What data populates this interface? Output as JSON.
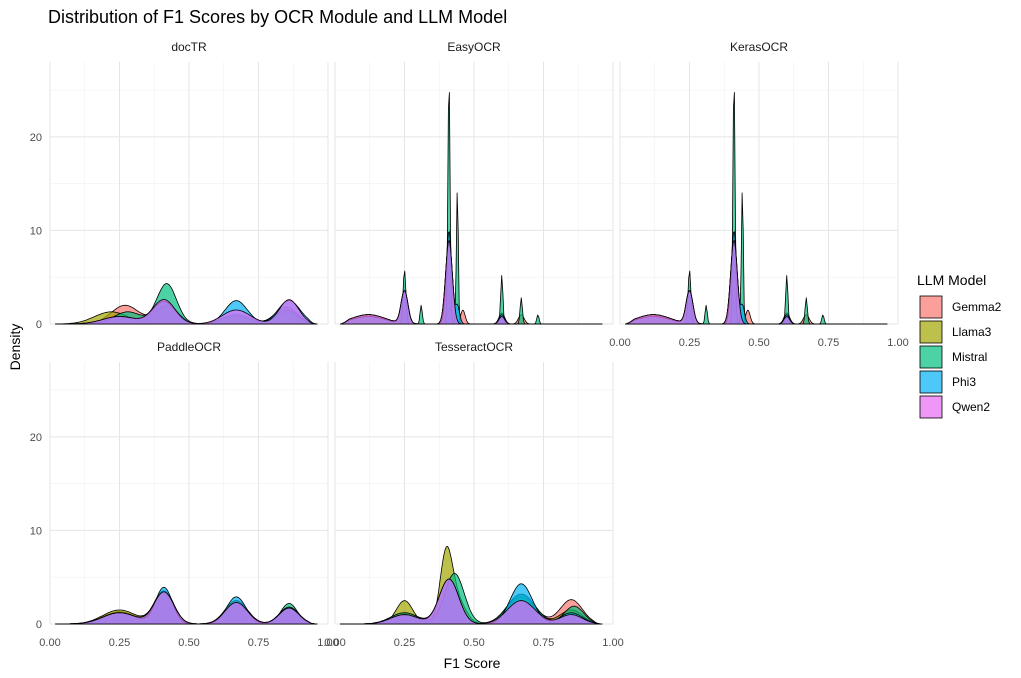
{
  "chart_data": {
    "type": "area",
    "chart_kind": "density",
    "title": "Distribution of F1 Scores by OCR Module and LLM Model",
    "xlabel": "F1 Score",
    "ylabel": "Density",
    "xlim": [
      0,
      1
    ],
    "ylim": [
      0,
      28
    ],
    "x_ticks": [
      "0.00",
      "0.25",
      "0.50",
      "0.75",
      "1.00"
    ],
    "y_ticks": [
      "0",
      "10",
      "20"
    ],
    "grid": true,
    "legend": {
      "title": "LLM Model",
      "position": "right"
    },
    "series": [
      {
        "name": "Gemma2",
        "color": "#F8766D"
      },
      {
        "name": "Llama3",
        "color": "#A3A500"
      },
      {
        "name": "Mistral",
        "color": "#00BF7D"
      },
      {
        "name": "Phi3",
        "color": "#00B0F6"
      },
      {
        "name": "Qwen2",
        "color": "#E76BF3"
      }
    ],
    "facets": [
      {
        "label": "docTR",
        "series": {
          "Gemma2": [
            [
              0.27,
              2.0,
              0.05
            ],
            [
              0.42,
              2.0,
              0.04
            ],
            [
              0.67,
              0.8,
              0.05
            ],
            [
              0.85,
              1.8,
              0.04
            ]
          ],
          "Llama3": [
            [
              0.22,
              1.3,
              0.06
            ],
            [
              0.42,
              2.0,
              0.04
            ],
            [
              0.67,
              0.8,
              0.05
            ],
            [
              0.85,
              1.3,
              0.04
            ]
          ],
          "Mistral": [
            [
              0.28,
              1.3,
              0.05
            ],
            [
              0.42,
              4.3,
              0.035
            ],
            [
              0.67,
              1.0,
              0.05
            ],
            [
              0.85,
              1.5,
              0.04
            ]
          ],
          "Phi3": [
            [
              0.25,
              0.8,
              0.06
            ],
            [
              0.41,
              2.4,
              0.04
            ],
            [
              0.67,
              2.5,
              0.04
            ],
            [
              0.86,
              2.5,
              0.04
            ]
          ],
          "Qwen2": [
            [
              0.25,
              0.8,
              0.06
            ],
            [
              0.41,
              2.6,
              0.04
            ],
            [
              0.67,
              1.5,
              0.05
            ],
            [
              0.86,
              2.6,
              0.035
            ]
          ]
        }
      },
      {
        "label": "EasyOCR",
        "series": {
          "Gemma2": [
            [
              0.12,
              1.0,
              0.06
            ],
            [
              0.25,
              3.5,
              0.012
            ],
            [
              0.41,
              9.0,
              0.012
            ],
            [
              0.46,
              1.5,
              0.008
            ],
            [
              0.6,
              1.2,
              0.01
            ],
            [
              0.67,
              1.0,
              0.01
            ]
          ],
          "Llama3": [
            [
              0.12,
              1.0,
              0.06
            ],
            [
              0.25,
              3.5,
              0.012
            ],
            [
              0.41,
              9.0,
              0.012
            ],
            [
              0.6,
              0.8,
              0.01
            ]
          ],
          "Mistral": [
            [
              0.25,
              5.8,
              0.005
            ],
            [
              0.31,
              2.0,
              0.004
            ],
            [
              0.41,
              27.0,
              0.004
            ],
            [
              0.44,
              14.5,
              0.0035
            ],
            [
              0.6,
              5.2,
              0.004
            ],
            [
              0.67,
              2.8,
              0.004
            ],
            [
              0.73,
              1.0,
              0.004
            ]
          ],
          "Phi3": [
            [
              0.12,
              0.8,
              0.06
            ],
            [
              0.25,
              3.5,
              0.012
            ],
            [
              0.41,
              10.0,
              0.01
            ],
            [
              0.44,
              2.0,
              0.008
            ],
            [
              0.6,
              1.0,
              0.01
            ]
          ],
          "Qwen2": [
            [
              0.12,
              1.0,
              0.06
            ],
            [
              0.25,
              3.5,
              0.012
            ],
            [
              0.41,
              9.0,
              0.012
            ],
            [
              0.6,
              0.8,
              0.01
            ]
          ]
        }
      },
      {
        "label": "KerasOCR",
        "series": {
          "Gemma2": [
            [
              0.12,
              1.0,
              0.06
            ],
            [
              0.25,
              3.5,
              0.012
            ],
            [
              0.41,
              9.0,
              0.012
            ],
            [
              0.46,
              1.5,
              0.008
            ],
            [
              0.6,
              1.2,
              0.01
            ],
            [
              0.67,
              1.0,
              0.01
            ]
          ],
          "Llama3": [
            [
              0.12,
              1.0,
              0.06
            ],
            [
              0.25,
              3.5,
              0.012
            ],
            [
              0.41,
              9.0,
              0.012
            ],
            [
              0.6,
              0.8,
              0.01
            ]
          ],
          "Mistral": [
            [
              0.25,
              5.8,
              0.005
            ],
            [
              0.31,
              2.0,
              0.004
            ],
            [
              0.41,
              27.0,
              0.004
            ],
            [
              0.44,
              14.5,
              0.0035
            ],
            [
              0.6,
              5.2,
              0.004
            ],
            [
              0.67,
              2.8,
              0.004
            ],
            [
              0.73,
              1.0,
              0.004
            ]
          ],
          "Phi3": [
            [
              0.12,
              0.8,
              0.06
            ],
            [
              0.25,
              3.5,
              0.012
            ],
            [
              0.41,
              10.0,
              0.01
            ],
            [
              0.44,
              2.0,
              0.008
            ],
            [
              0.6,
              1.0,
              0.01
            ]
          ],
          "Qwen2": [
            [
              0.12,
              1.0,
              0.06
            ],
            [
              0.25,
              3.5,
              0.012
            ],
            [
              0.41,
              9.0,
              0.012
            ],
            [
              0.6,
              0.8,
              0.01
            ]
          ]
        }
      },
      {
        "label": "PaddleOCR",
        "series": {
          "Gemma2": [
            [
              0.25,
              1.3,
              0.06
            ],
            [
              0.41,
              3.5,
              0.035
            ],
            [
              0.67,
              2.5,
              0.04
            ],
            [
              0.86,
              1.8,
              0.035
            ]
          ],
          "Llama3": [
            [
              0.25,
              1.5,
              0.06
            ],
            [
              0.41,
              3.5,
              0.035
            ],
            [
              0.67,
              2.5,
              0.04
            ],
            [
              0.86,
              1.8,
              0.035
            ]
          ],
          "Mistral": [
            [
              0.25,
              1.2,
              0.06
            ],
            [
              0.41,
              3.5,
              0.035
            ],
            [
              0.67,
              2.3,
              0.04
            ],
            [
              0.86,
              2.2,
              0.03
            ]
          ],
          "Phi3": [
            [
              0.25,
              1.2,
              0.06
            ],
            [
              0.41,
              3.9,
              0.03
            ],
            [
              0.67,
              2.9,
              0.035
            ],
            [
              0.86,
              1.8,
              0.035
            ]
          ],
          "Qwen2": [
            [
              0.25,
              1.2,
              0.06
            ],
            [
              0.41,
              3.4,
              0.035
            ],
            [
              0.67,
              2.3,
              0.04
            ],
            [
              0.86,
              1.7,
              0.035
            ]
          ]
        }
      },
      {
        "label": "TesseractOCR",
        "series": {
          "Gemma2": [
            [
              0.25,
              1.2,
              0.05
            ],
            [
              0.41,
              4.8,
              0.035
            ],
            [
              0.67,
              3.0,
              0.05
            ],
            [
              0.85,
              2.6,
              0.04
            ]
          ],
          "Llama3": [
            [
              0.25,
              2.5,
              0.03
            ],
            [
              0.4,
              7.2,
              0.022
            ],
            [
              0.44,
              2.5,
              0.03
            ],
            [
              0.67,
              2.8,
              0.05
            ],
            [
              0.85,
              1.5,
              0.04
            ]
          ],
          "Mistral": [
            [
              0.25,
              1.2,
              0.05
            ],
            [
              0.43,
              5.4,
              0.035
            ],
            [
              0.67,
              3.2,
              0.05
            ],
            [
              0.86,
              1.9,
              0.035
            ]
          ],
          "Phi3": [
            [
              0.25,
              1.0,
              0.05
            ],
            [
              0.41,
              4.8,
              0.035
            ],
            [
              0.67,
              4.3,
              0.04
            ],
            [
              0.85,
              1.2,
              0.04
            ]
          ],
          "Qwen2": [
            [
              0.25,
              1.0,
              0.05
            ],
            [
              0.41,
              4.8,
              0.035
            ],
            [
              0.67,
              2.5,
              0.05
            ],
            [
              0.85,
              1.0,
              0.04
            ]
          ]
        }
      }
    ]
  }
}
